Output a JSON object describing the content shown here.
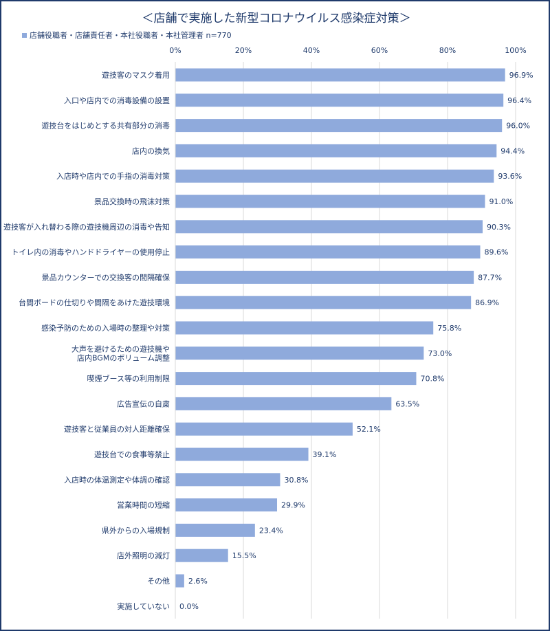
{
  "chart_data": {
    "type": "bar",
    "orientation": "horizontal",
    "title": "＜店舗で実施した新型コロナウイルス感染症対策＞",
    "legend": "店舗役職者・店舗責任者・本社役職者・本社管理者 n=770",
    "xlim": [
      0,
      100
    ],
    "xticks": [
      "0%",
      "20%",
      "40%",
      "60%",
      "80%",
      "100%"
    ],
    "grid": true,
    "legend_position": "top-left",
    "bar_color": "#8faadc",
    "categories": [
      "遊技客のマスク着用",
      "入口や店内での消毒設備の設置",
      "遊技台をはじめとする共有部分の消毒",
      "店内の換気",
      "入店時や店内での手指の消毒対策",
      "景品交換時の飛沫対策",
      "遊技客が入れ替わる際の遊技機周辺の消毒や告知",
      "トイレ内の消毒やハンドドライヤーの使用停止",
      "景品カウンターでの交換客の間隔確保",
      "台間ボードの仕切りや間隔をあけた遊技環境",
      "感染予防のための入場時の整理や対策",
      "大声を避けるための遊技機や\n店内BGMのボリューム調整",
      "喫煙ブース等の利用制限",
      "広告宣伝の自粛",
      "遊技客と従業員の対人距離確保",
      "遊技台での食事等禁止",
      "入店時の体温測定や体調の確認",
      "営業時間の短縮",
      "県外からの入場規制",
      "店外照明の減灯",
      "その他",
      "実施していない"
    ],
    "values": [
      96.9,
      96.4,
      96.0,
      94.4,
      93.6,
      91.0,
      90.3,
      89.6,
      87.7,
      86.9,
      75.8,
      73.0,
      70.8,
      63.5,
      52.1,
      39.1,
      30.8,
      29.9,
      23.4,
      15.5,
      2.6,
      0.0
    ],
    "value_labels": [
      "96.9%",
      "96.4%",
      "96.0%",
      "94.4%",
      "93.6%",
      "91.0%",
      "90.3%",
      "89.6%",
      "87.7%",
      "86.9%",
      "75.8%",
      "73.0%",
      "70.8%",
      "63.5%",
      "52.1%",
      "39.1%",
      "30.8%",
      "29.9%",
      "23.4%",
      "15.5%",
      "2.6%",
      "0.0%"
    ]
  }
}
